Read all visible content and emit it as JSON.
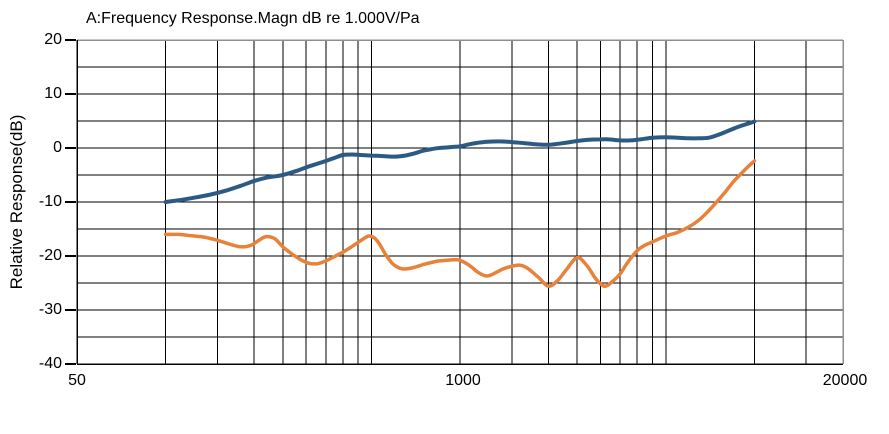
{
  "title": "A:Frequency Response.Magn dB re 1.000V/Pa",
  "y_axis": {
    "label": "Relative Response(dB)",
    "tick_labels": [
      "20",
      "10",
      "0",
      "-10",
      "-20",
      "-30",
      "-40"
    ]
  },
  "x_axis": {
    "tick_labels": [
      "50",
      "1000",
      "20000"
    ]
  },
  "colors": {
    "background": "#FFFFFF",
    "grid": "#000000",
    "axis": "#000000",
    "frame_top_right": "#8F8F8F",
    "curve_upper": "#2B5A85",
    "curve_lower": "#E8813A"
  },
  "chart_data": {
    "type": "line",
    "title": "A:Frequency Response.Magn dB re 1.000V/Pa",
    "xlabel": "",
    "ylabel": "Relative Response(dB)",
    "x_scale": "log",
    "xlim": [
      50,
      20000
    ],
    "ylim": [
      -40,
      20
    ],
    "grid": true,
    "legend": "none",
    "x_ticks_labeled": [
      50,
      1000,
      20000
    ],
    "y_ticks_labeled": [
      20,
      10,
      0,
      -10,
      -20,
      -30,
      -40
    ],
    "y_gridlines": [
      15,
      10,
      5,
      0,
      -5,
      -10,
      -15,
      -20,
      -25,
      -30,
      -35
    ],
    "x_gridlines": [
      100,
      150,
      200,
      250,
      300,
      350,
      400,
      450,
      500,
      1000,
      1500,
      2000,
      2500,
      3000,
      3500,
      4000,
      4500,
      5000,
      10000,
      15000
    ],
    "series": [
      {
        "name": "upper-response-curve",
        "color": "#2B5A85",
        "stroke_width": 4,
        "points": [
          [
            100,
            -10.0
          ],
          [
            110,
            -9.7
          ],
          [
            125,
            -9.2
          ],
          [
            140,
            -8.7
          ],
          [
            160,
            -7.9
          ],
          [
            180,
            -7.0
          ],
          [
            200,
            -6.1
          ],
          [
            220,
            -5.5
          ],
          [
            250,
            -5.0
          ],
          [
            280,
            -4.2
          ],
          [
            300,
            -3.6
          ],
          [
            320,
            -3.1
          ],
          [
            350,
            -2.4
          ],
          [
            380,
            -1.7
          ],
          [
            400,
            -1.3
          ],
          [
            430,
            -1.2
          ],
          [
            460,
            -1.3
          ],
          [
            500,
            -1.4
          ],
          [
            550,
            -1.5
          ],
          [
            600,
            -1.6
          ],
          [
            650,
            -1.4
          ],
          [
            700,
            -1.0
          ],
          [
            750,
            -0.5
          ],
          [
            800,
            -0.2
          ],
          [
            850,
            0.0
          ],
          [
            900,
            0.1
          ],
          [
            950,
            0.2
          ],
          [
            1000,
            0.3
          ],
          [
            1100,
            0.8
          ],
          [
            1200,
            1.1
          ],
          [
            1300,
            1.2
          ],
          [
            1400,
            1.2
          ],
          [
            1500,
            1.1
          ],
          [
            1650,
            0.9
          ],
          [
            1800,
            0.7
          ],
          [
            1950,
            0.6
          ],
          [
            2100,
            0.7
          ],
          [
            2300,
            1.0
          ],
          [
            2500,
            1.3
          ],
          [
            2700,
            1.5
          ],
          [
            3000,
            1.6
          ],
          [
            3200,
            1.6
          ],
          [
            3500,
            1.4
          ],
          [
            3800,
            1.4
          ],
          [
            4100,
            1.6
          ],
          [
            4500,
            1.9
          ],
          [
            5000,
            2.0
          ],
          [
            5500,
            1.9
          ],
          [
            6000,
            1.8
          ],
          [
            6500,
            1.8
          ],
          [
            7000,
            1.9
          ],
          [
            7500,
            2.4
          ],
          [
            8000,
            3.0
          ],
          [
            8500,
            3.6
          ],
          [
            9000,
            4.1
          ],
          [
            9500,
            4.5
          ],
          [
            10000,
            4.9
          ]
        ]
      },
      {
        "name": "lower-response-curve",
        "color": "#E8813A",
        "stroke_width": 3.5,
        "points": [
          [
            100,
            -16.0
          ],
          [
            110,
            -16.0
          ],
          [
            120,
            -16.2
          ],
          [
            135,
            -16.5
          ],
          [
            150,
            -17.1
          ],
          [
            165,
            -17.8
          ],
          [
            180,
            -18.3
          ],
          [
            195,
            -18.0
          ],
          [
            210,
            -16.9
          ],
          [
            220,
            -16.4
          ],
          [
            235,
            -16.8
          ],
          [
            250,
            -18.3
          ],
          [
            270,
            -19.7
          ],
          [
            290,
            -20.8
          ],
          [
            310,
            -21.4
          ],
          [
            330,
            -21.4
          ],
          [
            350,
            -20.9
          ],
          [
            375,
            -20.1
          ],
          [
            400,
            -19.3
          ],
          [
            425,
            -18.4
          ],
          [
            450,
            -17.5
          ],
          [
            470,
            -16.8
          ],
          [
            490,
            -16.3
          ],
          [
            510,
            -16.6
          ],
          [
            530,
            -17.6
          ],
          [
            560,
            -19.8
          ],
          [
            590,
            -21.4
          ],
          [
            620,
            -22.2
          ],
          [
            650,
            -22.4
          ],
          [
            700,
            -22.1
          ],
          [
            750,
            -21.6
          ],
          [
            800,
            -21.2
          ],
          [
            850,
            -20.9
          ],
          [
            900,
            -20.8
          ],
          [
            950,
            -20.7
          ],
          [
            1000,
            -20.8
          ],
          [
            1080,
            -21.8
          ],
          [
            1150,
            -23.0
          ],
          [
            1230,
            -23.7
          ],
          [
            1300,
            -23.3
          ],
          [
            1400,
            -22.4
          ],
          [
            1500,
            -21.9
          ],
          [
            1600,
            -21.7
          ],
          [
            1700,
            -22.3
          ],
          [
            1850,
            -24.0
          ],
          [
            2000,
            -25.6
          ],
          [
            2150,
            -24.5
          ],
          [
            2300,
            -22.5
          ],
          [
            2500,
            -20.3
          ],
          [
            2700,
            -21.8
          ],
          [
            2900,
            -24.3
          ],
          [
            3100,
            -25.6
          ],
          [
            3300,
            -24.7
          ],
          [
            3500,
            -23.3
          ],
          [
            3700,
            -21.3
          ],
          [
            4000,
            -19.0
          ],
          [
            4250,
            -18.0
          ],
          [
            4500,
            -17.4
          ],
          [
            5000,
            -16.3
          ],
          [
            5500,
            -15.6
          ],
          [
            6000,
            -14.6
          ],
          [
            6500,
            -13.3
          ],
          [
            7000,
            -11.6
          ],
          [
            7500,
            -9.8
          ],
          [
            8000,
            -8.0
          ],
          [
            8500,
            -6.2
          ],
          [
            9000,
            -4.8
          ],
          [
            9500,
            -3.5
          ],
          [
            10000,
            -2.4
          ]
        ]
      }
    ]
  }
}
